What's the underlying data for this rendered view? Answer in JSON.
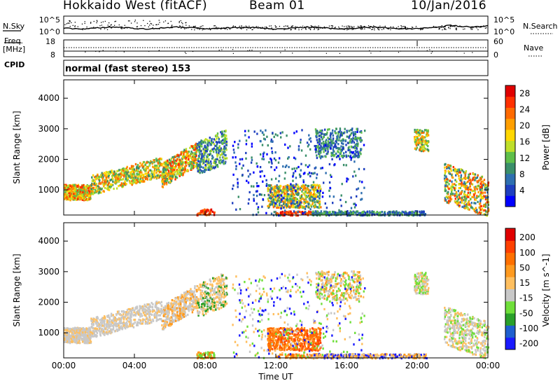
{
  "header": {
    "station": "Hokkaido West (fitACF)",
    "beam": "Beam 01",
    "date": "10/Jan/2016"
  },
  "top_panels": {
    "nsky_label": "N.Sky",
    "nsearch_label": "N.Search",
    "freq_label": "Freq.",
    "freq_unit": "[MHz]",
    "nave_label": "Nave",
    "cpid_label": "CPID",
    "mode_text": "normal (fast stereo) 153",
    "noise_ticks_left": [
      "10^5",
      "10^0"
    ],
    "noise_ticks_right": [
      "10^5",
      "10^0"
    ],
    "freq_ticks": [
      "18",
      "8"
    ],
    "nave_ticks": [
      "60",
      "0"
    ]
  },
  "colors": {
    "power_scale": [
      "#0000ff",
      "#1f3fbf",
      "#2e6fb0",
      "#3a8f6a",
      "#5fbf4a",
      "#bfdf2a",
      "#ffd700",
      "#ff9f00",
      "#ff6a00",
      "#ff3000",
      "#e00000"
    ],
    "velocity_scale": [
      "#1a1aff",
      "#1f5fcf",
      "#2aa02a",
      "#6fdf3a",
      "#c8c8c8",
      "#ffbf5f",
      "#ff9a1f",
      "#ff7000",
      "#ff4000",
      "#e00000"
    ]
  },
  "chart_data": [
    {
      "type": "heatmap",
      "name": "power-panel",
      "xlabel": "",
      "ylabel": "Slant Range [km]",
      "yticks": [
        "1000",
        "2000",
        "3000",
        "4000"
      ],
      "ylim": [
        180,
        4600
      ],
      "colorbar_label": "Power [dB]",
      "colorbar_ticks": [
        "4",
        "8",
        "12",
        "16",
        "20",
        "24",
        "28"
      ],
      "clim": [
        0,
        30
      ]
    },
    {
      "type": "heatmap",
      "name": "velocity-panel",
      "xlabel": "Time UT",
      "ylabel": "Slant Range [km]",
      "yticks": [
        "1000",
        "2000",
        "3000",
        "4000"
      ],
      "xticks": [
        "00:00",
        "04:00",
        "08:00",
        "12:00",
        "16:00",
        "20:00",
        "00:00"
      ],
      "ylim": [
        180,
        4600
      ],
      "colorbar_label": "Velocity [m s^-1]",
      "colorbar_ticks": [
        "200",
        "100",
        "50",
        "15",
        "-15",
        "-50",
        "-100",
        "-200"
      ]
    }
  ]
}
